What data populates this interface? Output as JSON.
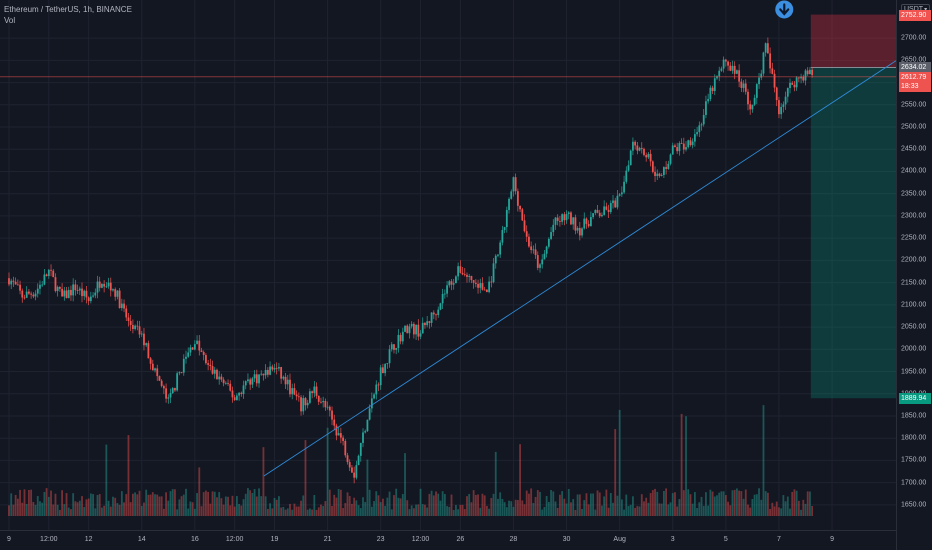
{
  "legend": {
    "symbol": "Ethereum / TetherUS, 1h, BINANCE",
    "indicator": "Vol"
  },
  "currency_button": "USDT",
  "price_tags": {
    "stop": {
      "label": "2752.90",
      "value": 2752.9,
      "color": "#f05350"
    },
    "entry": {
      "label": "2634.02",
      "value": 2634.02,
      "color": "#5d606b"
    },
    "current": {
      "label": "2612.79",
      "value": 2612.79,
      "countdown": "18:33",
      "color": "#ef5350"
    },
    "target": {
      "label": "1889.94",
      "value": 1889.94,
      "color": "#089981"
    }
  },
  "chart_data": {
    "type": "candlestick",
    "title": "Ethereum / TetherUS, 1h, BINANCE",
    "y_ticks": [
      "1650.00",
      "1700.00",
      "1750.00",
      "1800.00",
      "1850.00",
      "1900.00",
      "1950.00",
      "2000.00",
      "2050.00",
      "2100.00",
      "2150.00",
      "2200.00",
      "2250.00",
      "2300.00",
      "2350.00",
      "2400.00",
      "2450.00",
      "2500.00",
      "2550.00",
      "2600.00",
      "2650.00",
      "2700.00"
    ],
    "y_tick_values": [
      1650,
      1700,
      1750,
      1800,
      1850,
      1900,
      1950,
      2000,
      2050,
      2100,
      2150,
      2200,
      2250,
      2300,
      2350,
      2400,
      2450,
      2500,
      2550,
      2600,
      2650,
      2700
    ],
    "ylim": [
      1625,
      2770
    ],
    "x_ticks": [
      "9",
      "12:00",
      "12",
      "14",
      "16",
      "12:00",
      "19",
      "21",
      "23",
      "12:00",
      "26",
      "28",
      "30",
      "Aug",
      "3",
      "5",
      "7",
      "9"
    ],
    "x_tick_positions_days": [
      0,
      1.5,
      3,
      5,
      7,
      8.5,
      10,
      12,
      14,
      15.5,
      17,
      19,
      21,
      23,
      25,
      27,
      29,
      31
    ],
    "price_path_days": [
      0,
      0.5,
      1,
      1.5,
      2,
      2.5,
      3,
      3.5,
      4,
      4.5,
      5,
      5.5,
      6,
      6.5,
      7,
      7.5,
      8,
      8.5,
      9,
      9.5,
      10,
      10.5,
      11,
      11.5,
      12,
      12.5,
      13,
      13.5,
      14,
      14.5,
      15,
      15.5,
      16,
      16.5,
      17,
      17.5,
      18,
      18.5,
      19,
      19.5,
      20,
      20.5,
      21,
      21.5,
      22,
      22.5,
      23,
      23.5,
      24,
      24.5
    ],
    "price_path": [
      2160,
      2120,
      2130,
      2175,
      2115,
      2140,
      2110,
      2160,
      2130,
      2060,
      2030,
      1950,
      1880,
      1960,
      2020,
      1960,
      1930,
      1890,
      1930,
      1940,
      1960,
      1920,
      1870,
      1910,
      1860,
      1800,
      1720,
      1850,
      1950,
      2010,
      2050,
      2040,
      2080,
      2140,
      2180,
      2150,
      2130,
      2230,
      2380,
      2250,
      2180,
      2280,
      2300,
      2270,
      2300,
      2310,
      2340,
      2470,
      2440,
      2380
    ],
    "price_path_tail_days": [
      24.5,
      25,
      25.5,
      26,
      26.5,
      27,
      27.5,
      28,
      28.5,
      29,
      29.5,
      30
    ],
    "price_path_tail": [
      2380,
      2450,
      2460,
      2500,
      2590,
      2650,
      2610,
      2540,
      2680,
      2540,
      2600,
      2620
    ],
    "trendline": {
      "from": {
        "day": 9.6,
        "price": 1715
      },
      "to": {
        "day": 37,
        "price": 2790
      }
    },
    "position": {
      "type": "short",
      "entry": 2634.02,
      "stop": 2752.9,
      "target": 1889.94,
      "start_day": 30.2,
      "end_day": 37.5
    },
    "signal_marker": "arrow-down",
    "grid": true,
    "legend": "top-left"
  }
}
